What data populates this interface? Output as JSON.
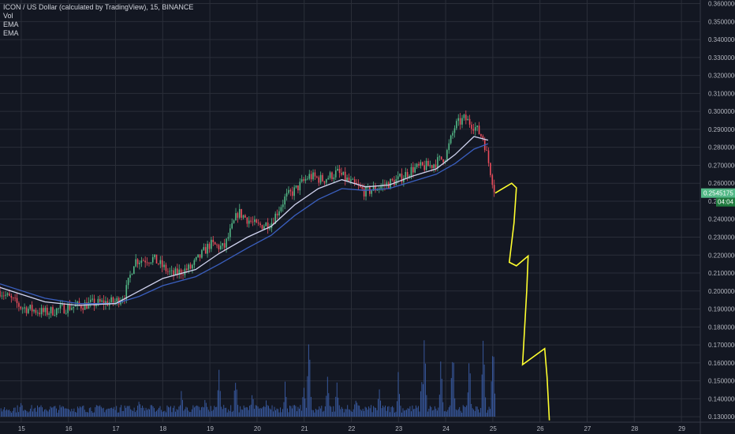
{
  "legend": {
    "title": "ICON / US Dollar (calculated by TradingView), 15, BINANCE",
    "indicators": [
      "Vol",
      "EMA",
      "EMA"
    ]
  },
  "colors": {
    "background": "#131722",
    "grid": "#2a2e39",
    "candle_up": "#53b987",
    "candle_down": "#eb4d5c",
    "ema_fast": "#d1d4f0",
    "ema_slow": "#3a5fbf",
    "volume": "#3b5ea8",
    "drawing": "#ffff2e",
    "price_tag": "#53b987",
    "countdown_tag": "#1f7a3e"
  },
  "chart_data": {
    "type": "candlestick",
    "symbol": "ICON / US Dollar",
    "interval": "15",
    "exchange": "BINANCE",
    "x_ticks": [
      "15",
      "16",
      "17",
      "18",
      "19",
      "20",
      "21",
      "22",
      "23",
      "24",
      "25",
      "26",
      "27",
      "28",
      "29"
    ],
    "y_ticks": [
      "0.3600000",
      "0.3500000",
      "0.3400000",
      "0.3300000",
      "0.3200000",
      "0.3100000",
      "0.3000000",
      "0.2900000",
      "0.2800000",
      "0.2700000",
      "0.2600000",
      "0.2500000",
      "0.2400000",
      "0.2300000",
      "0.2200000",
      "0.2100000",
      "0.2000000",
      "0.1900000",
      "0.1800000",
      "0.1700000",
      "0.1600000",
      "0.1500000",
      "0.1400000",
      "0.1300000"
    ],
    "ylim": [
      0.127,
      0.362
    ],
    "xlim_days": [
      14.55,
      29.4
    ],
    "last_price": "0.2545175",
    "countdown": "04:04",
    "price_path": [
      {
        "day": 14.55,
        "price": 0.2
      },
      {
        "day": 15.0,
        "price": 0.191
      },
      {
        "day": 15.5,
        "price": 0.188
      },
      {
        "day": 16.0,
        "price": 0.191
      },
      {
        "day": 16.5,
        "price": 0.193
      },
      {
        "day": 17.0,
        "price": 0.194
      },
      {
        "day": 17.2,
        "price": 0.198
      },
      {
        "day": 17.4,
        "price": 0.217
      },
      {
        "day": 17.8,
        "price": 0.218
      },
      {
        "day": 18.2,
        "price": 0.209
      },
      {
        "day": 18.6,
        "price": 0.213
      },
      {
        "day": 19.0,
        "price": 0.226
      },
      {
        "day": 19.3,
        "price": 0.224
      },
      {
        "day": 19.6,
        "price": 0.244
      },
      {
        "day": 20.0,
        "price": 0.236
      },
      {
        "day": 20.3,
        "price": 0.238
      },
      {
        "day": 20.6,
        "price": 0.252
      },
      {
        "day": 20.8,
        "price": 0.256
      },
      {
        "day": 21.1,
        "price": 0.264
      },
      {
        "day": 21.4,
        "price": 0.262
      },
      {
        "day": 21.7,
        "price": 0.266
      },
      {
        "day": 22.0,
        "price": 0.26
      },
      {
        "day": 22.3,
        "price": 0.255
      },
      {
        "day": 22.6,
        "price": 0.258
      },
      {
        "day": 23.0,
        "price": 0.262
      },
      {
        "day": 23.3,
        "price": 0.268
      },
      {
        "day": 23.7,
        "price": 0.27
      },
      {
        "day": 24.0,
        "price": 0.275
      },
      {
        "day": 24.2,
        "price": 0.292
      },
      {
        "day": 24.4,
        "price": 0.296
      },
      {
        "day": 24.6,
        "price": 0.292
      },
      {
        "day": 24.8,
        "price": 0.285
      },
      {
        "day": 25.05,
        "price": 0.2545
      }
    ],
    "ema_fast": [
      {
        "day": 14.55,
        "price": 0.202
      },
      {
        "day": 15.5,
        "price": 0.194
      },
      {
        "day": 16.2,
        "price": 0.192
      },
      {
        "day": 17.0,
        "price": 0.193
      },
      {
        "day": 17.5,
        "price": 0.2
      },
      {
        "day": 18.0,
        "price": 0.207
      },
      {
        "day": 18.7,
        "price": 0.212
      },
      {
        "day": 19.2,
        "price": 0.221
      },
      {
        "day": 19.8,
        "price": 0.23
      },
      {
        "day": 20.3,
        "price": 0.236
      },
      {
        "day": 20.8,
        "price": 0.248
      },
      {
        "day": 21.3,
        "price": 0.257
      },
      {
        "day": 21.8,
        "price": 0.262
      },
      {
        "day": 22.3,
        "price": 0.258
      },
      {
        "day": 22.8,
        "price": 0.259
      },
      {
        "day": 23.3,
        "price": 0.264
      },
      {
        "day": 23.8,
        "price": 0.268
      },
      {
        "day": 24.2,
        "price": 0.276
      },
      {
        "day": 24.6,
        "price": 0.286
      },
      {
        "day": 24.9,
        "price": 0.284
      }
    ],
    "ema_slow": [
      {
        "day": 14.55,
        "price": 0.204
      },
      {
        "day": 15.5,
        "price": 0.196
      },
      {
        "day": 16.2,
        "price": 0.193
      },
      {
        "day": 17.0,
        "price": 0.193
      },
      {
        "day": 17.5,
        "price": 0.197
      },
      {
        "day": 18.0,
        "price": 0.203
      },
      {
        "day": 18.7,
        "price": 0.208
      },
      {
        "day": 19.2,
        "price": 0.215
      },
      {
        "day": 19.8,
        "price": 0.224
      },
      {
        "day": 20.3,
        "price": 0.231
      },
      {
        "day": 20.8,
        "price": 0.242
      },
      {
        "day": 21.3,
        "price": 0.251
      },
      {
        "day": 21.8,
        "price": 0.257
      },
      {
        "day": 22.3,
        "price": 0.256
      },
      {
        "day": 22.8,
        "price": 0.257
      },
      {
        "day": 23.3,
        "price": 0.261
      },
      {
        "day": 23.8,
        "price": 0.265
      },
      {
        "day": 24.2,
        "price": 0.271
      },
      {
        "day": 24.6,
        "price": 0.279
      },
      {
        "day": 24.9,
        "price": 0.282
      }
    ],
    "volume_spikes": [
      {
        "day": 15.0,
        "level": 0.18
      },
      {
        "day": 15.9,
        "level": 0.12
      },
      {
        "day": 16.3,
        "level": 0.1
      },
      {
        "day": 17.2,
        "level": 0.14
      },
      {
        "day": 17.5,
        "level": 0.27
      },
      {
        "day": 17.8,
        "level": 0.16
      },
      {
        "day": 18.4,
        "level": 0.3
      },
      {
        "day": 18.9,
        "level": 0.22
      },
      {
        "day": 19.2,
        "level": 0.58
      },
      {
        "day": 19.55,
        "level": 0.54
      },
      {
        "day": 19.9,
        "level": 0.3
      },
      {
        "day": 20.2,
        "level": 0.2
      },
      {
        "day": 20.6,
        "level": 0.44
      },
      {
        "day": 21.0,
        "level": 0.4
      },
      {
        "day": 21.1,
        "level": 1.0
      },
      {
        "day": 21.5,
        "level": 0.55
      },
      {
        "day": 21.7,
        "level": 0.48
      },
      {
        "day": 22.1,
        "level": 0.25
      },
      {
        "day": 22.6,
        "level": 0.36
      },
      {
        "day": 23.0,
        "level": 0.52
      },
      {
        "day": 23.5,
        "level": 0.56
      },
      {
        "day": 23.55,
        "level": 0.92
      },
      {
        "day": 23.9,
        "level": 0.62
      },
      {
        "day": 24.15,
        "level": 0.98
      },
      {
        "day": 24.5,
        "level": 0.66
      },
      {
        "day": 24.8,
        "level": 0.88
      },
      {
        "day": 25.0,
        "level": 0.98
      }
    ],
    "drawn_path": [
      {
        "day": 25.05,
        "price": 0.2545
      },
      {
        "day": 25.4,
        "price": 0.26
      },
      {
        "day": 25.5,
        "price": 0.2575
      },
      {
        "day": 25.45,
        "price": 0.238
      },
      {
        "day": 25.35,
        "price": 0.216
      },
      {
        "day": 25.5,
        "price": 0.214
      },
      {
        "day": 25.75,
        "price": 0.2195
      },
      {
        "day": 25.72,
        "price": 0.2
      },
      {
        "day": 25.63,
        "price": 0.159
      },
      {
        "day": 26.1,
        "price": 0.168
      },
      {
        "day": 26.15,
        "price": 0.152
      },
      {
        "day": 26.2,
        "price": 0.128
      }
    ]
  }
}
